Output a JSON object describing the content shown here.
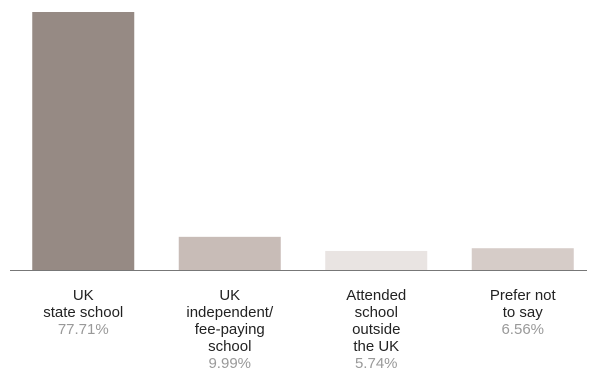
{
  "chart_data": {
    "type": "bar",
    "categories": [
      [
        "UK",
        "state school"
      ],
      [
        "UK",
        "independent/",
        "fee-paying",
        "school"
      ],
      [
        "Attended",
        "school",
        "outside",
        "the UK"
      ],
      [
        "Prefer not",
        "to say"
      ]
    ],
    "values": [
      77.71,
      9.99,
      5.74,
      6.56
    ],
    "value_labels": [
      "77.71%",
      "9.99%",
      "5.74%",
      "6.56%"
    ],
    "colors": [
      "#968a84",
      "#c8bcb7",
      "#e9e4e2",
      "#d6ccc8"
    ],
    "ylim": [
      0,
      77.71
    ]
  }
}
